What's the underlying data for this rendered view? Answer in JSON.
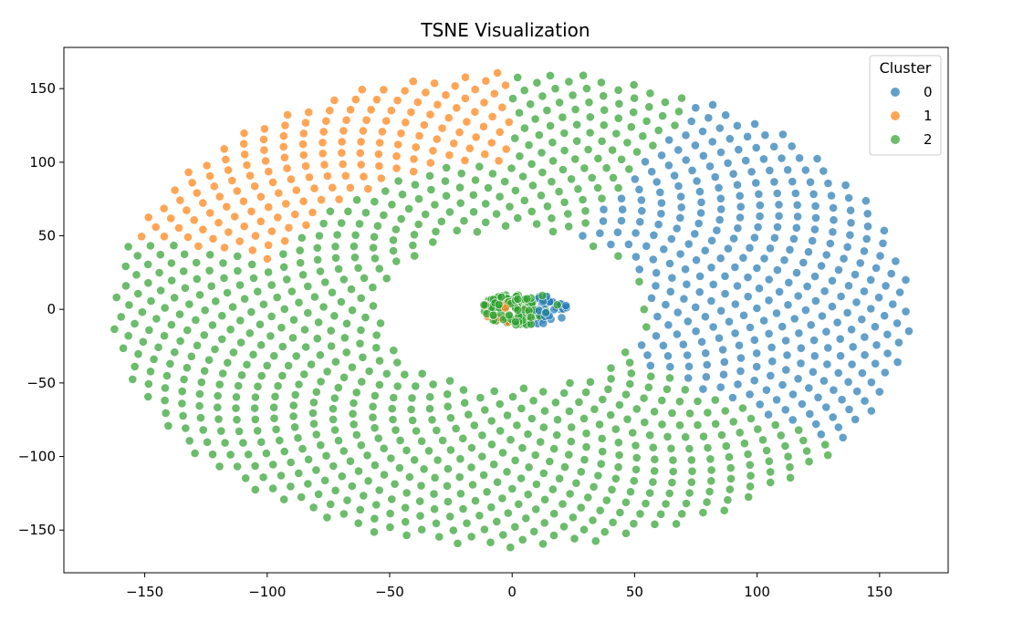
{
  "chart_data": {
    "type": "scatter",
    "title": "TSNE Visualization",
    "xlabel": "",
    "ylabel": "",
    "xlim": [
      -183,
      178
    ],
    "ylim": [
      -179,
      178
    ],
    "xticks": [
      -150,
      -100,
      -50,
      0,
      50,
      100,
      150
    ],
    "yticks": [
      -150,
      -100,
      -50,
      0,
      50,
      100,
      150
    ],
    "xtick_labels": [
      "−150",
      "−100",
      "−50",
      "0",
      "50",
      "100",
      "150"
    ],
    "ytick_labels": [
      "−150",
      "−100",
      "−50",
      "0",
      "50",
      "100",
      "150"
    ],
    "grid": false,
    "legend": {
      "title": "Cluster",
      "placement": "top-right",
      "entries": [
        {
          "label": "0",
          "color": "#1f77b4"
        },
        {
          "label": "1",
          "color": "#ff7f0e"
        },
        {
          "label": "2",
          "color": "#2ca02c"
        }
      ]
    },
    "points": {
      "description_of_structure": "outer elliptical phyllotaxis ring plus dense core",
      "outer": {
        "n_points": 1260,
        "inner_radius_frac": 0.33,
        "semi_axis_x": 163,
        "semi_axis_y": 162,
        "x_scale": 1.0,
        "y_scale": 1.0
      },
      "core": {
        "n_points": 150,
        "center_x": 5,
        "center_y": 0,
        "radius_x": 18,
        "radius_y": 11
      },
      "cluster_rules": {
        "cluster_1_angle_range_deg": [
          90,
          162
        ],
        "cluster_0_angle_range_deg": [
          -35,
          62
        ]
      }
    }
  }
}
